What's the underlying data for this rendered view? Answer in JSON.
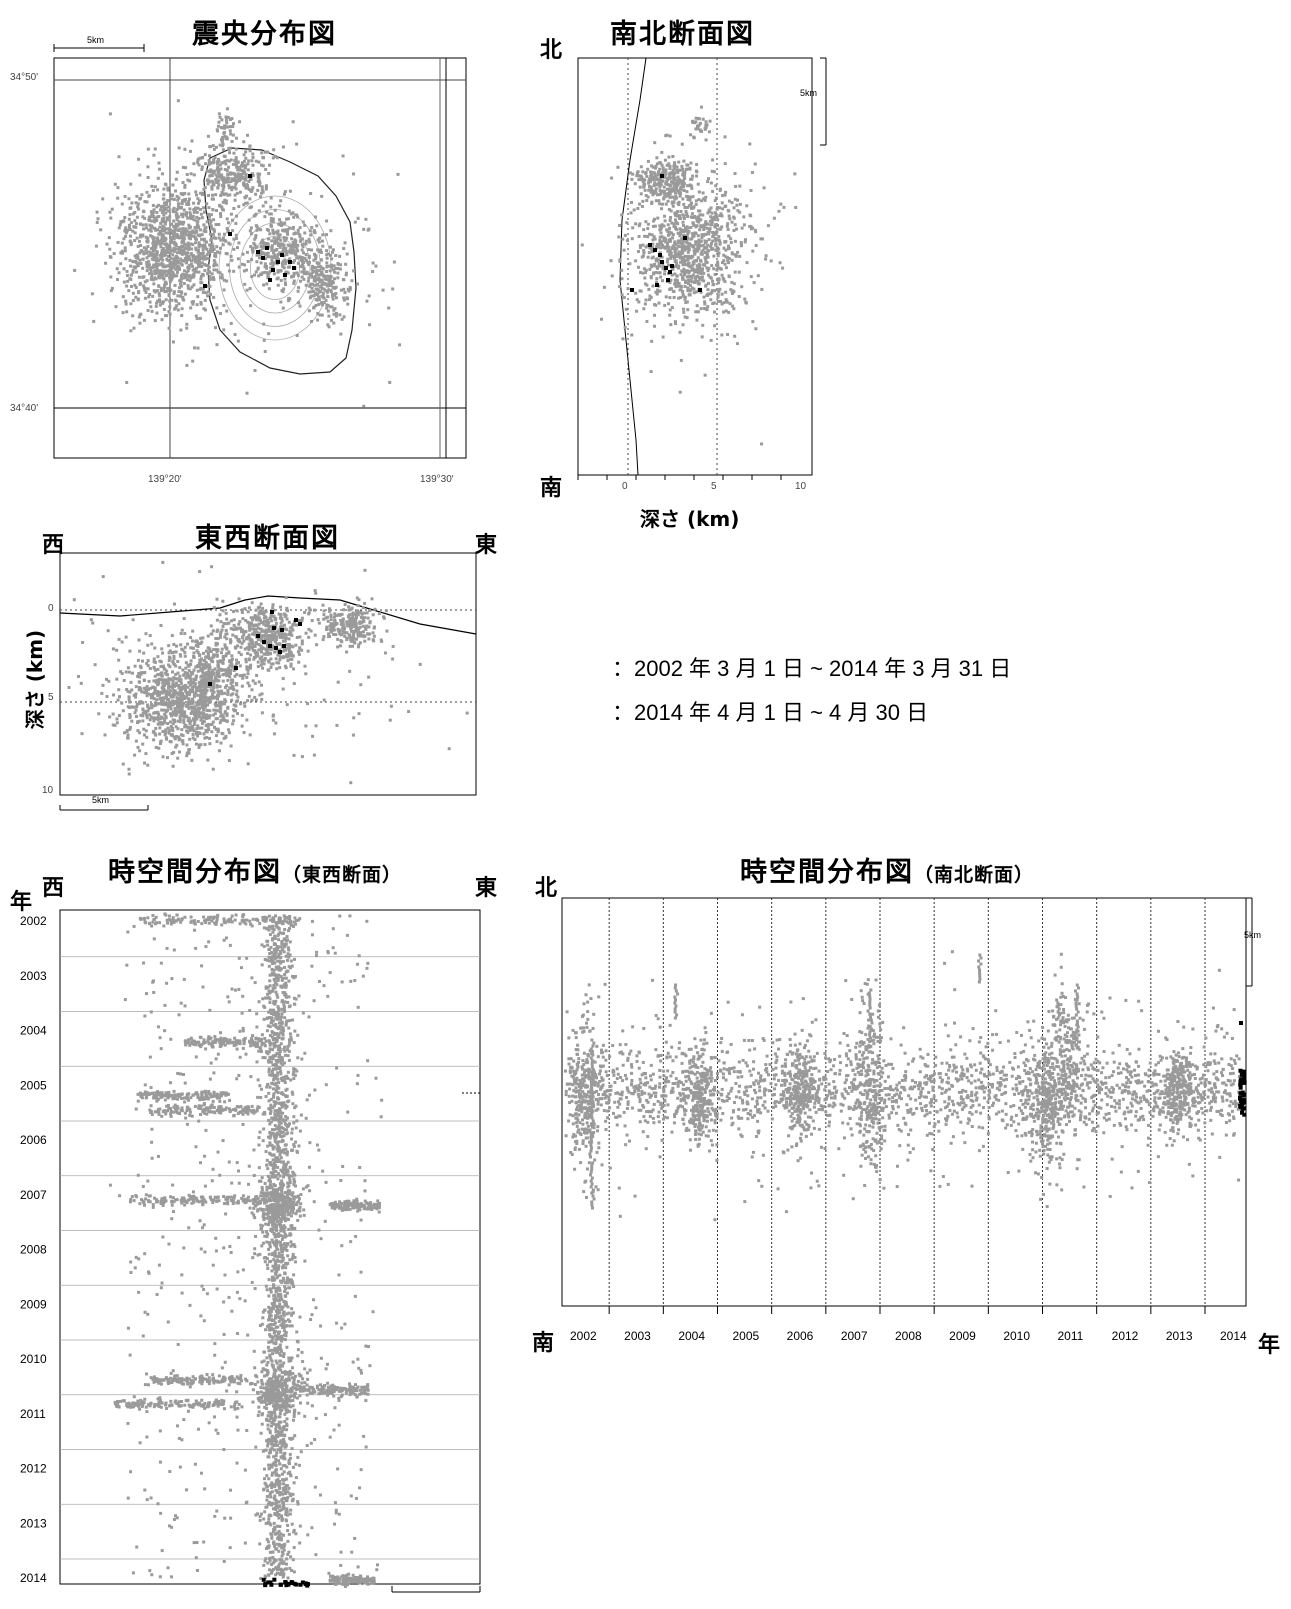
{
  "colors": {
    "background_events": "#9a9a9a",
    "recent_events": "#000000",
    "frame": "#000000",
    "grid": "#888888"
  },
  "epicenter_map": {
    "title": "震央分布図",
    "scale_label": "5km",
    "lat_labels": [
      "34°50'",
      "34°40'"
    ],
    "lon_labels": [
      "139°20'",
      "139°30'"
    ]
  },
  "ns_section": {
    "title": "南北断面図",
    "north": "北",
    "south": "南",
    "x_ticks": [
      "0",
      "5",
      "10"
    ],
    "xlabel": "深さ (km)",
    "scale_label": "5km"
  },
  "ew_section": {
    "title": "東西断面図",
    "west": "西",
    "east": "東",
    "y_ticks": [
      "0",
      "5",
      "10"
    ],
    "ylabel": "深さ (km)",
    "scale_label": "5km"
  },
  "legend": [
    {
      "label": "：2002 年 3 月 1 日 ~ 2014 年 3 月 31 日",
      "color": "#9a9a9a"
    },
    {
      "label": "：2014 年 4 月 1 日 ~ 4 月 30 日",
      "color": "#000000"
    }
  ],
  "st_ew": {
    "title": "時空間分布図",
    "subtitle": "（東西断面）",
    "year_label": "年",
    "west": "西",
    "east": "東",
    "years": [
      "2002",
      "2003",
      "2004",
      "2005",
      "2006",
      "2007",
      "2008",
      "2009",
      "2010",
      "2011",
      "2012",
      "2013",
      "2014"
    ]
  },
  "st_ns": {
    "title": "時空間分布図",
    "subtitle": "（南北断面）",
    "north": "北",
    "south": "南",
    "year_label": "年",
    "scale_label": "5km",
    "years": [
      "2002",
      "2003",
      "2004",
      "2005",
      "2006",
      "2007",
      "2008",
      "2009",
      "2010",
      "2011",
      "2012",
      "2013",
      "2014"
    ]
  },
  "chart_data": [
    {
      "type": "scatter",
      "title": "震央分布図",
      "xlabel": "",
      "ylabel": "",
      "x_ticks": [
        "139°20'",
        "139°30'"
      ],
      "y_ticks": [
        "34°50'",
        "34°40'"
      ],
      "series": [
        {
          "name": "2002年3月1日~2014年3月31日",
          "color": "#9a9a9a",
          "clusters": [
            {
              "x": 139.317,
              "y": 34.738,
              "spread": "large",
              "density": "dense"
            },
            {
              "x": 139.365,
              "y": 34.79,
              "spread": "medium",
              "density": "dense"
            },
            {
              "x": 139.38,
              "y": 34.737,
              "spread": "medium",
              "density": "dense"
            },
            {
              "x": 139.425,
              "y": 34.72,
              "spread": "medium",
              "density": "dense"
            }
          ]
        },
        {
          "name": "2014年4月1日~4月30日",
          "color": "#000000",
          "points": [
            [
              139.368,
              34.76
            ],
            [
              139.372,
              34.745
            ],
            [
              139.375,
              34.748
            ],
            [
              139.378,
              34.752
            ],
            [
              139.38,
              34.74
            ],
            [
              139.382,
              34.746
            ],
            [
              139.385,
              34.742
            ],
            [
              139.388,
              34.75
            ],
            [
              139.375,
              34.735
            ],
            [
              139.37,
              34.738
            ],
            [
              139.36,
              34.748
            ],
            [
              139.345,
              34.712
            ],
            [
              139.355,
              34.76
            ],
            [
              139.366,
              34.792
            ]
          ]
        }
      ]
    },
    {
      "type": "scatter",
      "title": "南北断面図",
      "xlabel": "深さ (km)",
      "ylabel": "",
      "x_ticks": [
        "0",
        "5",
        "10"
      ],
      "xlim": [
        -3,
        10
      ],
      "series": [
        {
          "name": "2002年3月1日~2014年3月31日",
          "color": "#9a9a9a",
          "clusters": [
            {
              "depth": 3.0,
              "position": "center",
              "spread": "large",
              "density": "dense"
            },
            {
              "depth": 1.5,
              "position": "north",
              "spread": "small",
              "density": "medium"
            }
          ]
        },
        {
          "name": "2014年4月1日~4月30日",
          "color": "#000000",
          "points": [
            [
              1.5,
              0.52
            ],
            [
              1.8,
              0.5
            ],
            [
              2.0,
              0.49
            ],
            [
              2.2,
              0.5
            ],
            [
              2.4,
              0.48
            ],
            [
              2.5,
              0.46
            ],
            [
              2.7,
              0.47
            ],
            [
              2.3,
              0.51
            ],
            [
              1.9,
              0.53
            ],
            [
              0.2,
              0.45
            ],
            [
              3.2,
              0.45
            ]
          ]
        }
      ]
    },
    {
      "type": "scatter",
      "title": "東西断面図",
      "xlabel": "",
      "ylabel": "深さ (km)",
      "y_ticks": [
        "0",
        "5",
        "10"
      ],
      "ylim": [
        10,
        0
      ],
      "series": [
        {
          "name": "2002年3月1日~2014年3月31日",
          "color": "#9a9a9a",
          "clusters": [
            {
              "position": "west",
              "depth": 5.0,
              "spread": "large",
              "density": "dense"
            },
            {
              "position": "center",
              "depth": 2.0,
              "spread": "medium",
              "density": "dense"
            },
            {
              "position": "east",
              "depth": 1.0,
              "spread": "small",
              "density": "dense"
            }
          ]
        },
        {
          "name": "2014年4月1日~4月30日",
          "color": "#000000",
          "points": [
            [
              0.5,
              1.5
            ],
            [
              0.52,
              2.0
            ],
            [
              0.54,
              1.8
            ],
            [
              0.55,
              2.3
            ],
            [
              0.56,
              2.6
            ],
            [
              0.57,
              2.2
            ],
            [
              0.53,
              1.2
            ],
            [
              0.58,
              0.8
            ],
            [
              0.6,
              1.0
            ],
            [
              0.51,
              0.2
            ],
            [
              0.42,
              3.1
            ],
            [
              0.36,
              4.3
            ]
          ]
        }
      ]
    },
    {
      "type": "scatter",
      "title": "時空間分布図 (東西断面)",
      "xlabel": "",
      "ylabel": "年",
      "y_ticks": [
        "2002",
        "2003",
        "2004",
        "2005",
        "2006",
        "2007",
        "2008",
        "2009",
        "2010",
        "2011",
        "2012",
        "2013",
        "2014"
      ],
      "series": [
        {
          "name": "2002年3月1日~2014年3月31日",
          "color": "#9a9a9a",
          "pattern": "dense vertical band at center with horizontal bursts (2002, 2004, 2006, 2007, 2010)"
        },
        {
          "name": "2014年4月1日~4月30日",
          "color": "#000000",
          "pattern": "small cluster at 2014 near center"
        }
      ]
    },
    {
      "type": "scatter",
      "title": "時空間分布図 (南北断面)",
      "xlabel": "年",
      "ylabel": "",
      "x_ticks": [
        "2002",
        "2003",
        "2004",
        "2005",
        "2006",
        "2007",
        "2008",
        "2009",
        "2010",
        "2011",
        "2012",
        "2013",
        "2014"
      ],
      "series": [
        {
          "name": "2002年3月1日~2014年3月31日",
          "color": "#9a9a9a",
          "pattern": "horizontal band across all years with vertical bursts (2002, 2007, 2009, 2010)"
        },
        {
          "name": "2014年4月1日~4月30日",
          "color": "#000000",
          "pattern": "vertical cluster at 2014"
        }
      ]
    }
  ]
}
